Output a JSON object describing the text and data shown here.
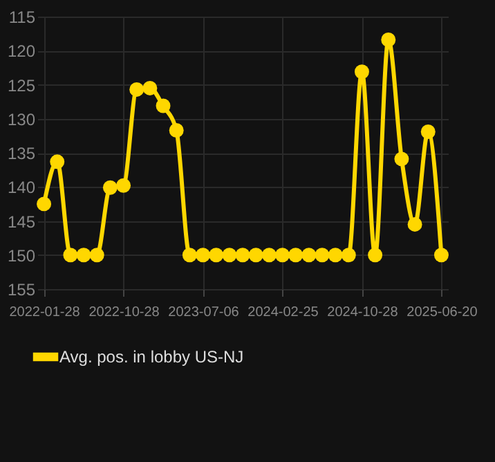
{
  "chart_data": {
    "type": "line",
    "categories": [
      "2022-01-28",
      null,
      null,
      null,
      null,
      null,
      "2022-10-28",
      null,
      null,
      null,
      null,
      null,
      "2023-07-06",
      null,
      null,
      null,
      null,
      null,
      "2024-02-25",
      null,
      null,
      null,
      null,
      null,
      "2024-10-28",
      null,
      null,
      null,
      null,
      null,
      "2025-06-20"
    ],
    "series": [
      {
        "name": "Avg. pos. in lobby US-NJ",
        "color": "#ffd700",
        "values": [
          142.5,
          136.3,
          150,
          150,
          150,
          140.1,
          139.8,
          125.7,
          125.5,
          128.1,
          131.7,
          150,
          150,
          150,
          150,
          150,
          150,
          150,
          150,
          150,
          150,
          150,
          150,
          150,
          123.1,
          150,
          118.4,
          135.9,
          145.5,
          131.9,
          150
        ]
      }
    ],
    "ylim": [
      155,
      115
    ],
    "yticks": [
      115,
      120,
      125,
      130,
      135,
      140,
      145,
      150,
      155
    ],
    "grid": true,
    "legend": "bottom",
    "marker": "circle",
    "line_style": "solid"
  }
}
